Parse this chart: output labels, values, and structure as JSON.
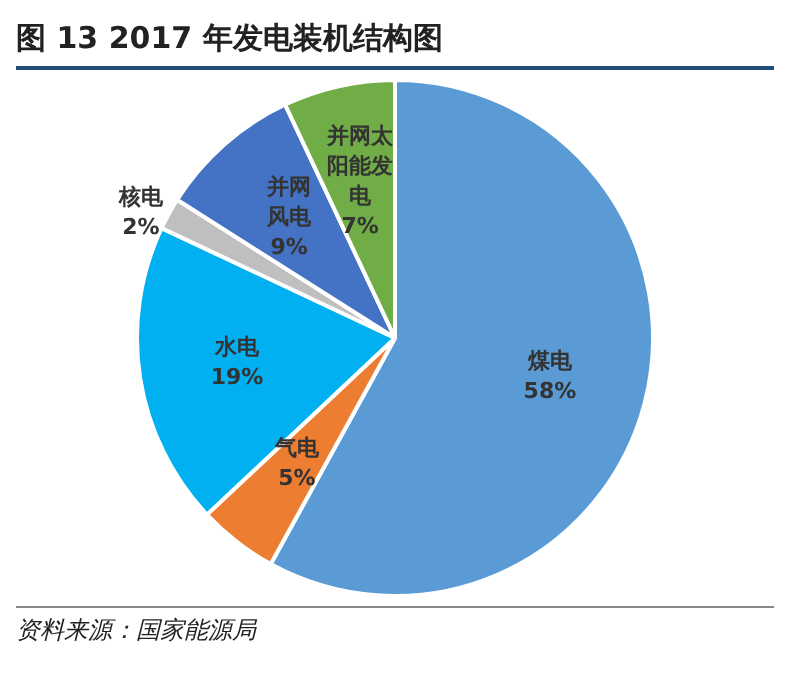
{
  "chart_data": {
    "type": "pie",
    "title": "图 13 2017 年发电装机结构图",
    "categories": [
      "煤电",
      "气电",
      "水电",
      "核电",
      "并网风电",
      "并网太阳能发电"
    ],
    "values": [
      58,
      5,
      19,
      2,
      9,
      7
    ],
    "value_labels": [
      "58%",
      "5%",
      "19%",
      "2%",
      "9%",
      "7%"
    ],
    "colors": [
      "#5b9bd5",
      "#ed7d31",
      "#00b0f0",
      "#bfbfbf",
      "#4472c4",
      "#70ad47"
    ],
    "legend": false,
    "annotations": [
      "资料来源：国家能源局"
    ]
  }
}
